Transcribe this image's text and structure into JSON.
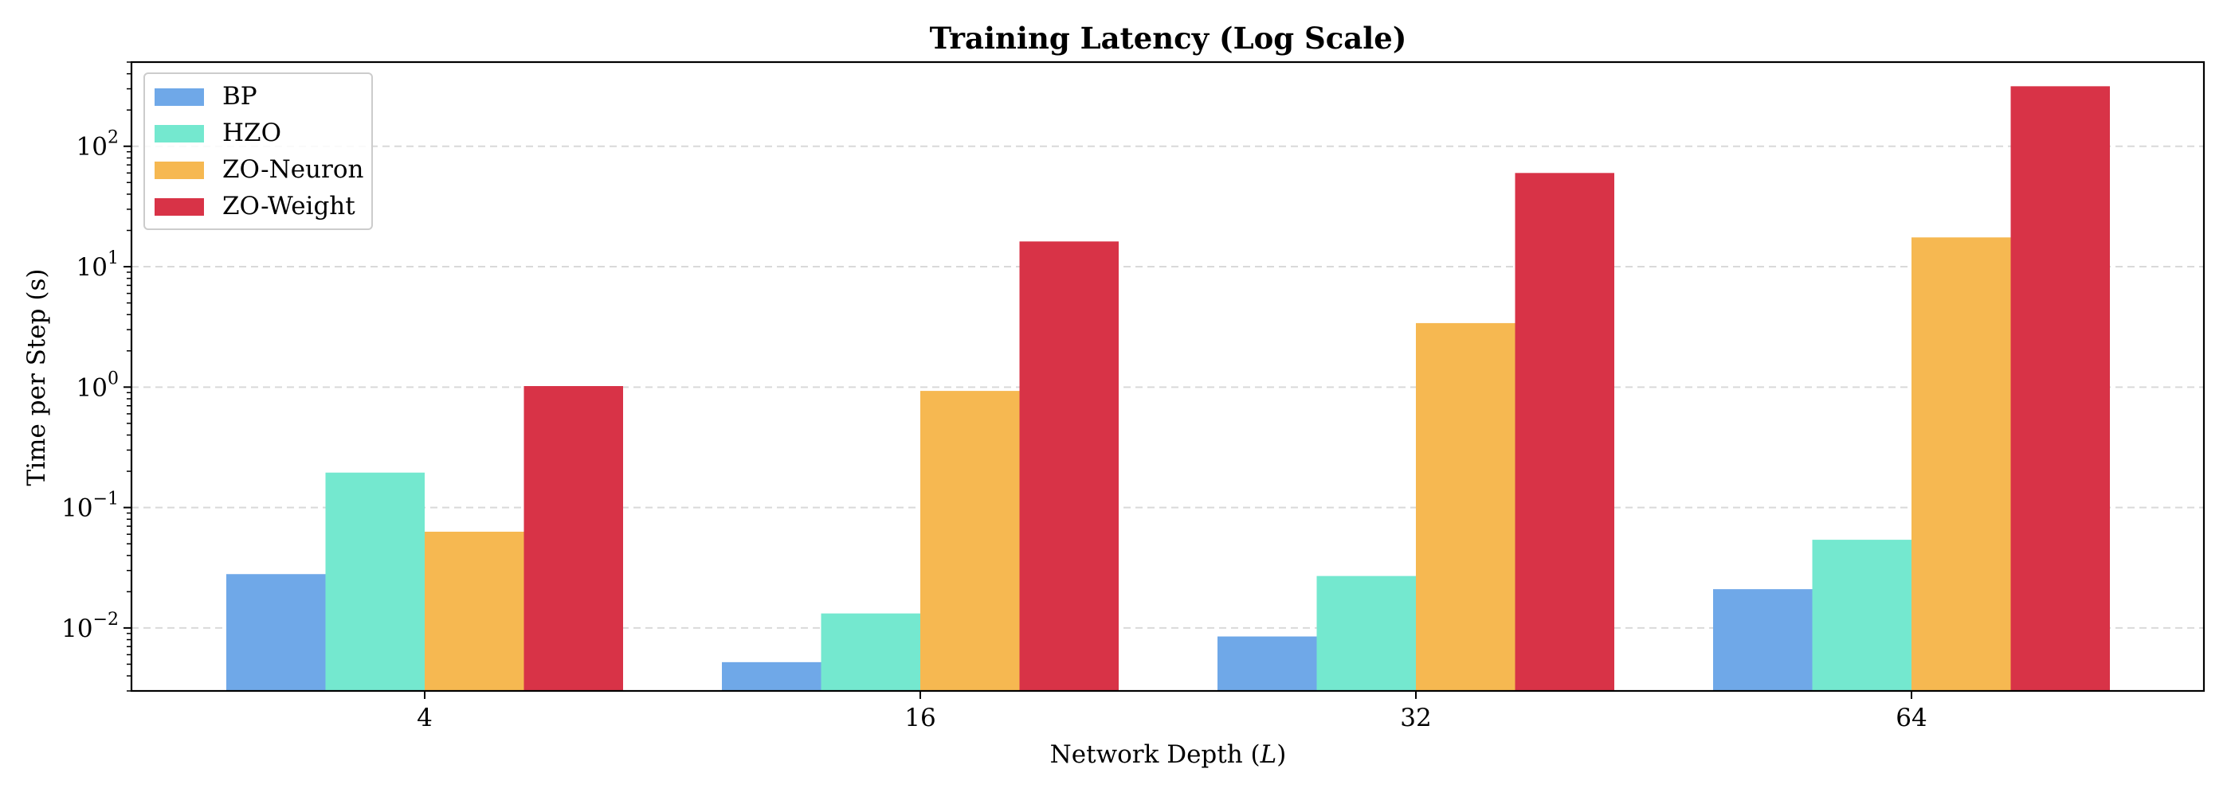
{
  "chart_data": {
    "type": "bar",
    "title": "Training Latency (Log Scale)",
    "xlabel": "Network Depth (",
    "xlabel_var": "L",
    "xlabel_suffix": ")",
    "ylabel": "Time per Step (s)",
    "yscale": "log",
    "ylim": [
      0.003,
      500
    ],
    "grid": true,
    "legend_position": "top-left",
    "categories": [
      "4",
      "16",
      "32",
      "64"
    ],
    "yticks": [
      {
        "value": 0.01,
        "base": "10",
        "exp": "−2"
      },
      {
        "value": 0.1,
        "base": "10",
        "exp": "−1"
      },
      {
        "value": 1,
        "base": "10",
        "exp": "0"
      },
      {
        "value": 10,
        "base": "10",
        "exp": "1"
      },
      {
        "value": 100,
        "base": "10",
        "exp": "2"
      }
    ],
    "series": [
      {
        "name": "BP",
        "color": "#6fa8e8",
        "values": [
          0.028,
          0.0052,
          0.0085,
          0.021
        ]
      },
      {
        "name": "HZO",
        "color": "#74e8cf",
        "values": [
          0.195,
          0.0132,
          0.027,
          0.054
        ]
      },
      {
        "name": "ZO-Neuron",
        "color": "#f6b851",
        "values": [
          0.063,
          0.93,
          3.4,
          17.5
        ]
      },
      {
        "name": "ZO-Weight",
        "color": "#d83347",
        "values": [
          1.02,
          16.2,
          60,
          315
        ]
      }
    ]
  }
}
